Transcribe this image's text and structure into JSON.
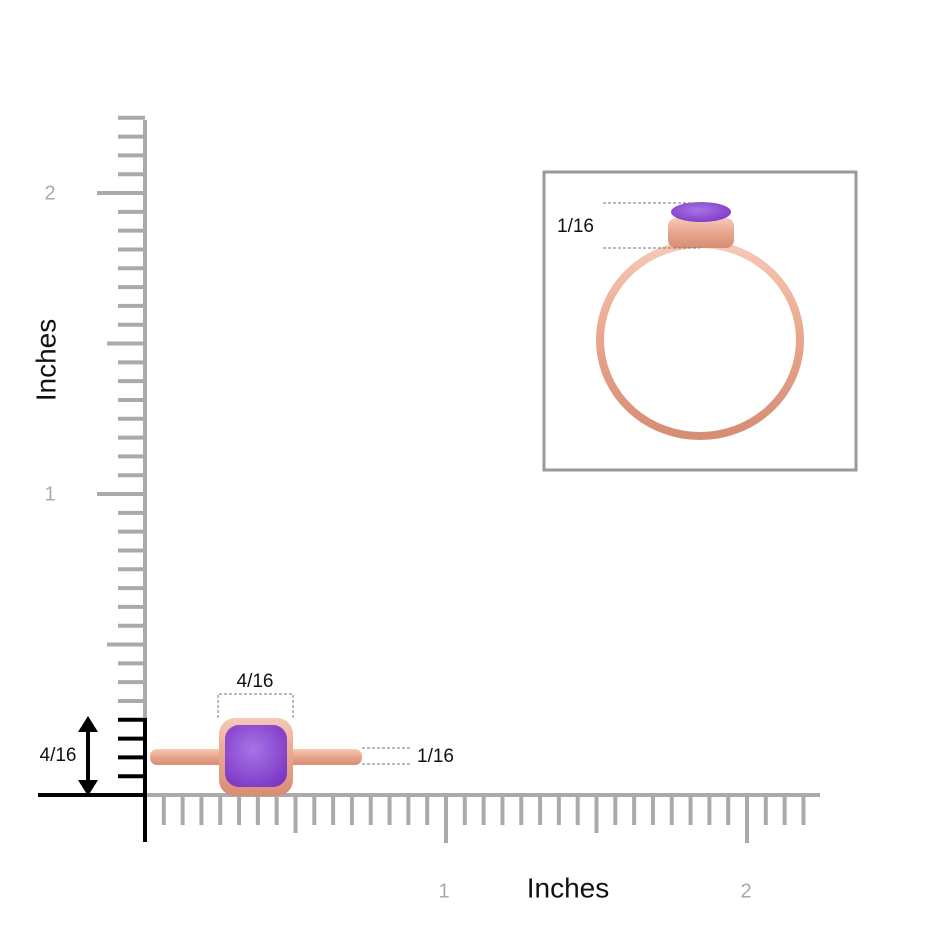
{
  "ruler": {
    "y_axis": {
      "title": "Inches",
      "labels": [
        "2",
        "1"
      ]
    },
    "x_axis": {
      "title": "Inches",
      "labels": [
        "1",
        "2"
      ]
    }
  },
  "annotations": {
    "stone_width": "4/16",
    "band_thickness": "1/16",
    "ring_height": "4/16",
    "inset_height": "1/16"
  }
}
